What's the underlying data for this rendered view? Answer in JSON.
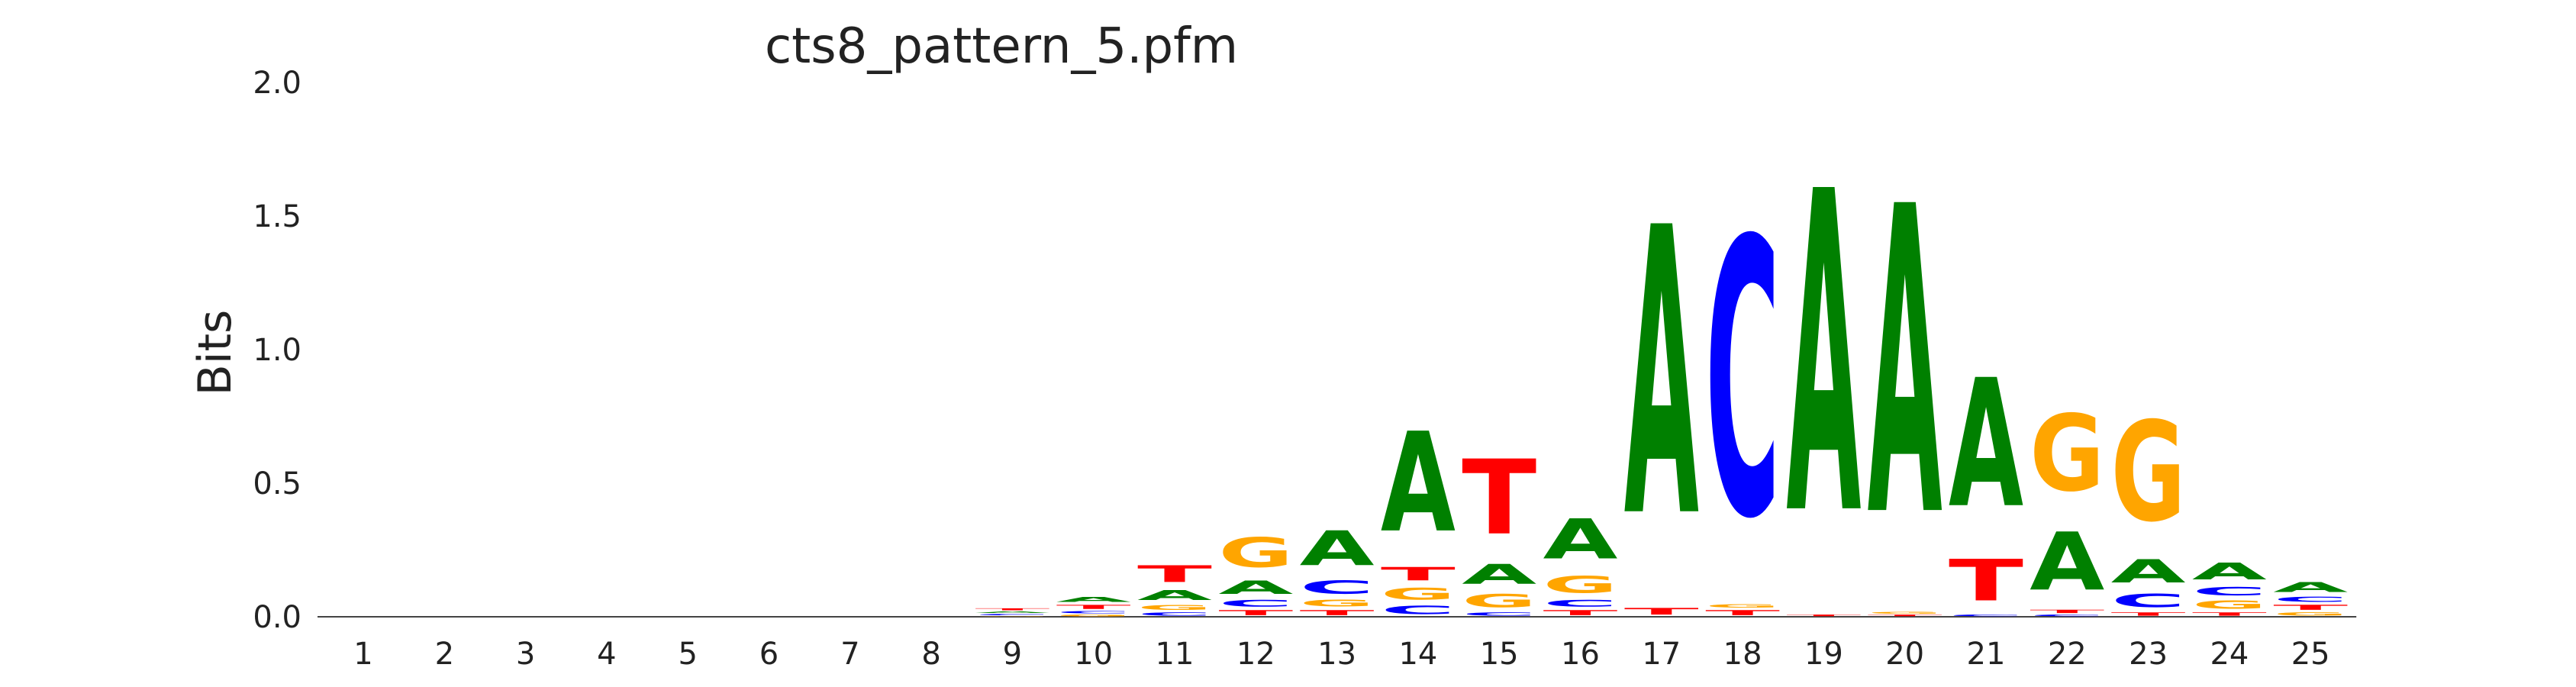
{
  "chart_data": {
    "type": "sequence-logo",
    "title": "cts8_pattern_5.pfm",
    "ylabel": "Bits",
    "xlabel": "",
    "ylim": [
      0,
      2.0
    ],
    "yticks": [
      "0.0",
      "0.5",
      "1.0",
      "1.5",
      "2.0"
    ],
    "categories": [
      "1",
      "2",
      "3",
      "4",
      "5",
      "6",
      "7",
      "8",
      "9",
      "10",
      "11",
      "12",
      "13",
      "14",
      "15",
      "16",
      "17",
      "18",
      "19",
      "20",
      "21",
      "22",
      "23",
      "24",
      "25"
    ],
    "colors": {
      "A": "#008000",
      "C": "#0000ff",
      "G": "#ffa500",
      "T": "#ff0000"
    },
    "positions": [
      [],
      [],
      [],
      [],
      [],
      [],
      [],
      [],
      [
        [
          "G",
          0.004
        ],
        [
          "C",
          0.008
        ],
        [
          "A",
          0.01
        ],
        [
          "T",
          0.012
        ]
      ],
      [
        [
          "G",
          0.01
        ],
        [
          "C",
          0.014
        ],
        [
          "T",
          0.025
        ],
        [
          "A",
          0.03
        ]
      ],
      [
        [
          "C",
          0.02
        ],
        [
          "G",
          0.03
        ],
        [
          "A",
          0.06
        ],
        [
          "T",
          0.1
        ]
      ],
      [
        [
          "T",
          0.03
        ],
        [
          "C",
          0.04
        ],
        [
          "A",
          0.08
        ],
        [
          "G",
          0.18
        ]
      ],
      [
        [
          "T",
          0.03
        ],
        [
          "G",
          0.04
        ],
        [
          "C",
          0.08
        ],
        [
          "A",
          0.21
        ]
      ],
      [
        [
          "C",
          0.05
        ],
        [
          "G",
          0.07
        ],
        [
          "T",
          0.08
        ],
        [
          "A",
          0.6
        ]
      ],
      [
        [
          "C",
          0.02
        ],
        [
          "G",
          0.08
        ],
        [
          "A",
          0.12
        ],
        [
          "T",
          0.45
        ]
      ],
      [
        [
          "T",
          0.03
        ],
        [
          "C",
          0.04
        ],
        [
          "G",
          0.1
        ],
        [
          "A",
          0.24
        ]
      ],
      [
        [
          "T",
          0.04
        ],
        [
          "A",
          1.73
        ]
      ],
      [
        [
          "T",
          0.03
        ],
        [
          "G",
          0.02
        ],
        [
          "C",
          1.66
        ]
      ],
      [
        [
          "T",
          0.01
        ],
        [
          "A",
          1.93
        ]
      ],
      [
        [
          "T",
          0.01
        ],
        [
          "G",
          0.01
        ],
        [
          "A",
          1.85
        ]
      ],
      [
        [
          "C",
          0.01
        ],
        [
          "T",
          0.25
        ],
        [
          "A",
          0.77
        ]
      ],
      [
        [
          "C",
          0.01
        ],
        [
          "T",
          0.02
        ],
        [
          "A",
          0.35
        ],
        [
          "G",
          0.46
        ]
      ],
      [
        [
          "T",
          0.02
        ],
        [
          "C",
          0.08
        ],
        [
          "A",
          0.14
        ],
        [
          "G",
          0.6
        ]
      ],
      [
        [
          "T",
          0.02
        ],
        [
          "G",
          0.05
        ],
        [
          "C",
          0.05
        ],
        [
          "A",
          0.1
        ]
      ],
      [
        [
          "G",
          0.02
        ],
        [
          "T",
          0.03
        ],
        [
          "C",
          0.03
        ],
        [
          "A",
          0.06
        ]
      ]
    ]
  }
}
